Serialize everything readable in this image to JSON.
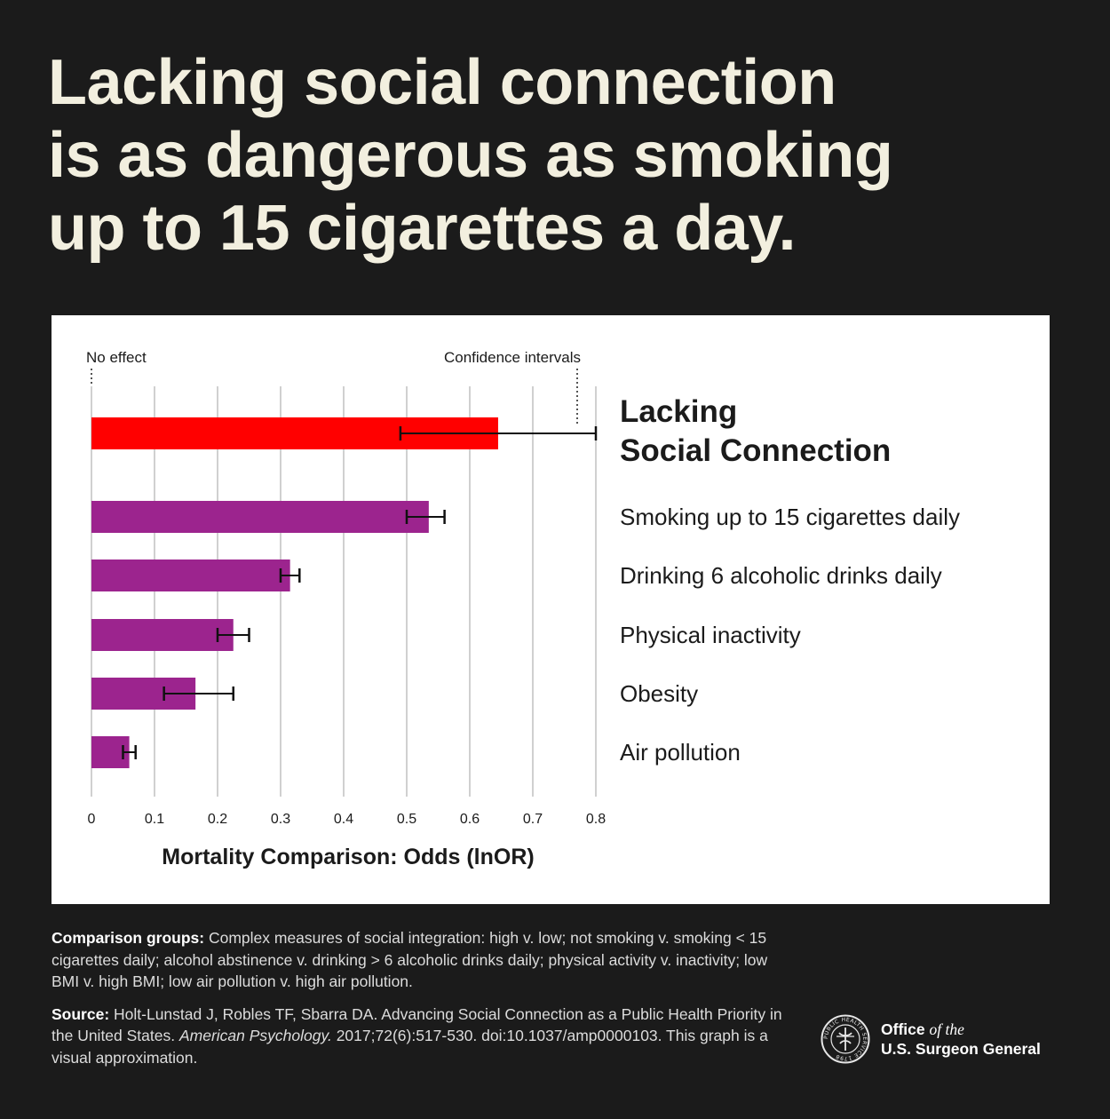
{
  "headline": {
    "line1": "Lacking social connection",
    "line2": "is as dangerous as smoking",
    "line3": "up to 15 cigarettes a day."
  },
  "chart_data": {
    "type": "bar",
    "orientation": "horizontal",
    "annotations": {
      "no_effect": "No effect",
      "confidence_intervals": "Confidence intervals"
    },
    "xlabel": "Mortality Comparison: Odds (lnOR)",
    "xlim": [
      0,
      0.8
    ],
    "xticks": [
      "0",
      "0.1",
      "0.2",
      "0.3",
      "0.4",
      "0.5",
      "0.6",
      "0.7",
      "0.8"
    ],
    "grid": true,
    "categories": [
      {
        "line1": "Lacking",
        "line2": "Social Connection",
        "highlight": true
      },
      {
        "line1": "Smoking up to 15 cigarettes daily",
        "highlight": false
      },
      {
        "line1": "Drinking 6 alcoholic drinks daily",
        "highlight": false
      },
      {
        "line1": "Physical inactivity",
        "highlight": false
      },
      {
        "line1": "Obesity",
        "highlight": false
      },
      {
        "line1": "Air pollution",
        "highlight": false
      }
    ],
    "values": [
      0.645,
      0.535,
      0.315,
      0.225,
      0.165,
      0.06
    ],
    "ci_low": [
      0.49,
      0.5,
      0.3,
      0.2,
      0.115,
      0.05
    ],
    "ci_high": [
      0.8,
      0.56,
      0.33,
      0.25,
      0.225,
      0.07
    ],
    "colors": {
      "highlight": "#ff0000",
      "bar": "#9c248e",
      "grid": "#d0d0d0",
      "text": "#1b1b1b"
    }
  },
  "notes": {
    "comparison_label": "Comparison groups:",
    "comparison_text": " Complex measures of social integration: high v. low; not smoking v. smoking < 15 cigarettes daily; alcohol abstinence v. drinking > 6 alcoholic drinks daily; physical activity v. inactivity; low BMI v. high BMI; low air pollution v. high air pollution.",
    "source_label": "Source:",
    "source_text1": " Holt-Lunstad J, Robles TF, Sbarra DA. Advancing Social Connection as a Public Health Priority in the United States. ",
    "source_journal": "American Psychology.",
    "source_text2": " 2017;72(6):517-530. doi:10.1037/amp0000103. This graph is a visual approximation."
  },
  "logo": {
    "line1_a": "Office",
    "line1_b": "of the",
    "line2": "U.S. Surgeon General",
    "seal_text": "PUBLIC HEALTH SERVICE 1798"
  }
}
